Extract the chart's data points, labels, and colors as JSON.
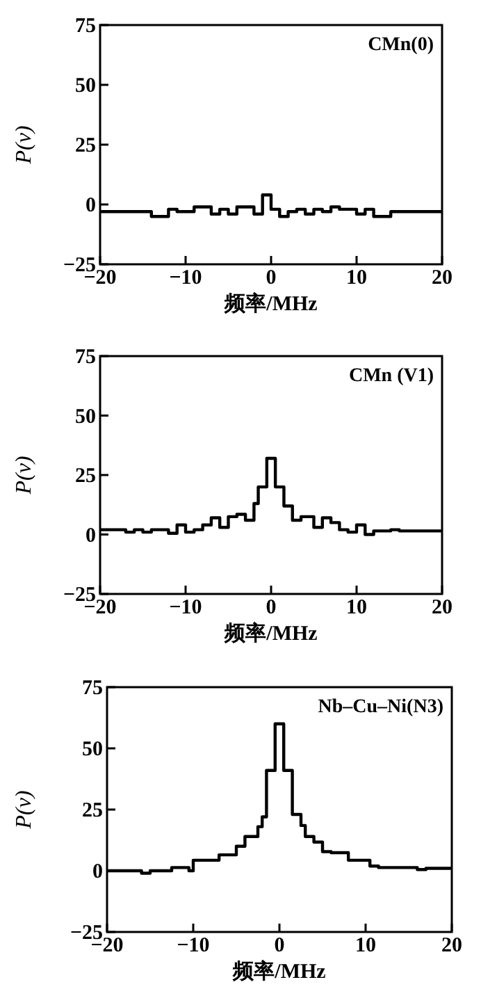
{
  "chart_data": [
    {
      "type": "step",
      "title": "CMn(0)",
      "xlabel": "频率/MHz",
      "ylabel": "P(ν)",
      "color": "#000000",
      "xlim": [
        -20,
        20
      ],
      "ylim": [
        -25,
        75
      ],
      "xticks": [
        -20,
        -10,
        0,
        10,
        20
      ],
      "yticks": [
        -25,
        0,
        25,
        50,
        75
      ],
      "x": [
        -20,
        -14,
        -12,
        -11,
        -9,
        -8,
        -7,
        -6,
        -5,
        -4,
        -2,
        -1,
        0,
        1,
        2,
        3,
        4,
        5,
        6,
        7,
        8,
        10,
        11,
        12,
        14,
        20
      ],
      "values": [
        -3,
        -5,
        -2,
        -3,
        -1,
        -1,
        -4,
        -2,
        -4,
        -1,
        -4,
        4,
        -2,
        -5,
        -3,
        -2,
        -4,
        -2,
        -3,
        -1,
        -2,
        -4,
        -2,
        -5,
        -3,
        -3
      ]
    },
    {
      "type": "step",
      "title": "CMn (V1)",
      "xlabel": "频率/MHz",
      "ylabel": "P(ν)",
      "color": "#000000",
      "xlim": [
        -20,
        20
      ],
      "ylim": [
        -25,
        75
      ],
      "xticks": [
        -20,
        -10,
        0,
        10,
        20
      ],
      "yticks": [
        -25,
        0,
        25,
        50,
        75
      ],
      "x": [
        -20,
        -17,
        -16,
        -15,
        -14,
        -12,
        -11,
        -10,
        -9,
        -8,
        -7,
        -6,
        -5,
        -4,
        -3,
        -2,
        -1.5,
        -0.5,
        0.5,
        1.5,
        2.5,
        3.5,
        5,
        6,
        7,
        8,
        9,
        10,
        11,
        12,
        14,
        15,
        20
      ],
      "values": [
        2,
        1,
        2,
        1,
        2,
        0.5,
        4,
        1,
        2,
        4,
        7,
        3,
        7.5,
        8.5,
        6,
        13,
        20,
        32,
        20,
        12,
        6,
        7.5,
        3,
        7,
        5,
        2,
        1,
        4,
        0,
        1.5,
        2,
        1.5,
        1.5
      ]
    },
    {
      "type": "step",
      "title": "Nb–Cu–Ni(N3)",
      "xlabel": "频率/MHz",
      "ylabel": "P(ν)",
      "color": "#000000",
      "xlim": [
        -20,
        20
      ],
      "ylim": [
        -25,
        75
      ],
      "xticks": [
        -20,
        -10,
        0,
        10,
        20
      ],
      "yticks": [
        -25,
        0,
        25,
        50,
        75
      ],
      "x": [
        -20,
        -16,
        -15,
        -12.5,
        -10.5,
        -10,
        -7,
        -5,
        -4,
        -2.5,
        -2,
        -1.5,
        -0.5,
        0.5,
        1.5,
        2.5,
        3,
        4,
        5,
        6,
        8,
        10.5,
        11.5,
        16,
        17,
        20
      ],
      "values": [
        0,
        -1,
        0,
        1.3,
        0,
        4.3,
        6.5,
        10,
        14,
        18,
        22,
        41,
        60,
        41,
        23,
        18.5,
        14,
        11.7,
        7.8,
        7.4,
        4.3,
        1.9,
        1.3,
        0.5,
        1,
        1
      ]
    }
  ]
}
